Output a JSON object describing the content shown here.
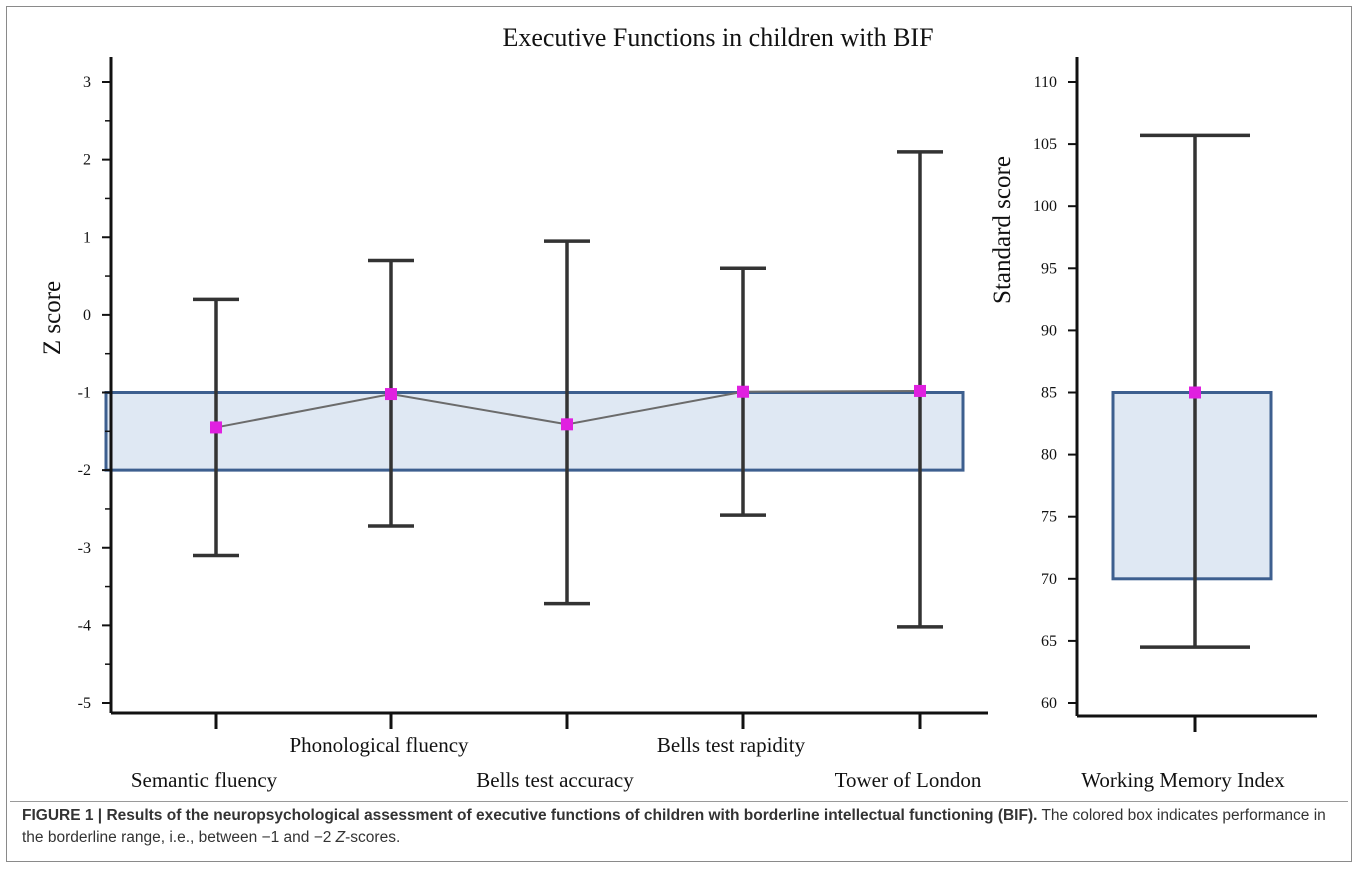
{
  "colors": {
    "axis": "#111111",
    "errorbar": "#333333",
    "band_fill": "#dfe8f3",
    "band_stroke": "#3d5f8f",
    "marker": "#e020e0",
    "connector": "#6b6b6b"
  },
  "chart_data": [
    {
      "type": "errorbar",
      "title": "Executive Functions in children with BIF",
      "ylabel": "Z score",
      "ylim": [
        -5,
        3
      ],
      "yticks": [
        3,
        2,
        1,
        0,
        -1,
        -2,
        -3,
        -4,
        -5
      ],
      "yticklabels": [
        "3",
        "2",
        "1",
        "0",
        "-1",
        "-2",
        "-3",
        "-4",
        "-5"
      ],
      "borderline_band": [
        -2,
        -1
      ],
      "connected_means": true,
      "categories": [
        "Semantic fluency",
        "Phonological fluency",
        "Bells test accuracy",
        "Bells test rapidity",
        "Tower of London"
      ],
      "mean": [
        -1.45,
        -1.02,
        -1.41,
        -0.99,
        -0.98
      ],
      "lower": [
        -3.1,
        -2.72,
        -3.72,
        -2.58,
        -4.02
      ],
      "upper": [
        0.2,
        0.7,
        0.95,
        0.6,
        2.1
      ]
    },
    {
      "type": "errorbar",
      "ylabel": "Standard score",
      "ylim": [
        60,
        110
      ],
      "yticks": [
        110,
        105,
        100,
        95,
        90,
        85,
        80,
        75,
        70,
        65,
        60
      ],
      "yticklabels": [
        "110",
        "105",
        "100",
        "95",
        "90",
        "85",
        "80",
        "75",
        "70",
        "65",
        "60"
      ],
      "borderline_band": [
        70,
        85
      ],
      "categories": [
        "Working Memory Index"
      ],
      "mean": [
        85
      ],
      "lower": [
        64.5
      ],
      "upper": [
        105.7
      ]
    }
  ],
  "caption": {
    "figure_label": "FIGURE 1 | ",
    "bold_text": "Results of the neuropsychological assessment of executive functions of children with borderline intellectual functioning (BIF).",
    "text_part1": " The colored box indicates performance in the borderline range, i.e., between −1 and −2 ",
    "z_italic": "Z",
    "text_part2": "-scores."
  }
}
